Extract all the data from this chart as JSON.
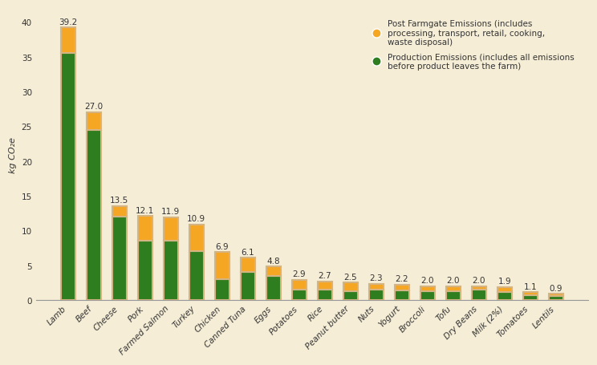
{
  "categories": [
    "Lamb",
    "Beef",
    "Cheese",
    "Pork",
    "Farmed Salmon",
    "Turkey",
    "Chicken",
    "Canned Tuna",
    "Eggs",
    "Potatoes",
    "Rice",
    "Peanut butter",
    "Nuts",
    "Yogurt",
    "Broccoli",
    "Tofu",
    "Dry Beans",
    "Milk (2%)",
    "Tomatoes",
    "Lentils"
  ],
  "totals": [
    39.2,
    27.0,
    13.5,
    12.1,
    11.9,
    10.9,
    6.9,
    6.1,
    4.8,
    2.9,
    2.7,
    2.5,
    2.3,
    2.2,
    2.0,
    2.0,
    2.0,
    1.9,
    1.1,
    0.9
  ],
  "production": [
    35.5,
    24.5,
    12.0,
    8.5,
    8.5,
    7.0,
    3.0,
    4.0,
    3.5,
    1.5,
    1.5,
    1.3,
    1.5,
    1.4,
    1.3,
    1.3,
    1.5,
    1.1,
    0.7,
    0.6
  ],
  "post_farmgate_color": "#F5A623",
  "production_color": "#2E7D1E",
  "background_color": "#F5EDD6",
  "bar_edge_color": "#D4B483",
  "ylabel": "kg CO₂e",
  "ylim": [
    0,
    42
  ],
  "yticks": [
    0,
    5,
    10,
    15,
    20,
    25,
    30,
    35,
    40
  ],
  "legend_post": "Post Farmgate Emissions (includes\nprocessing, transport, retail, cooking,\nwaste disposal)",
  "legend_prod": "Production Emissions (includes all emissions\nbefore product leaves the farm)",
  "label_fontsize": 8,
  "tick_fontsize": 7.5,
  "annotation_fontsize": 7.5
}
